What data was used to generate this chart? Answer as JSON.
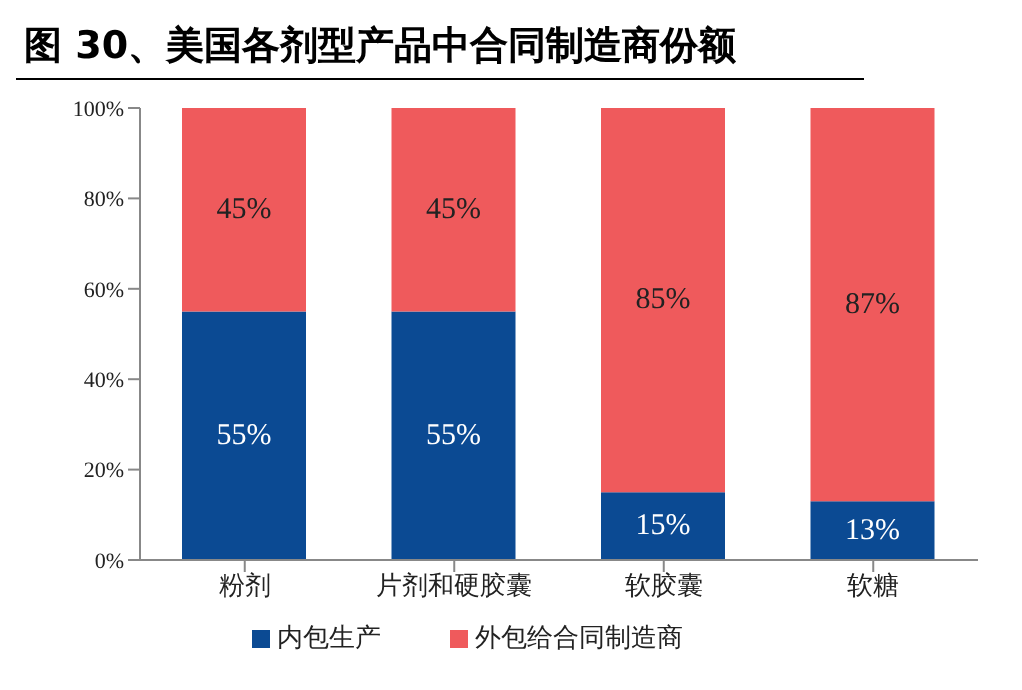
{
  "chart_data": {
    "type": "bar",
    "title": "图 30、美国各剂型产品中合同制造商份额",
    "stacked": true,
    "categories": [
      "粉剂",
      "片剂和硬胶囊",
      "软胶囊",
      "软糖"
    ],
    "series": [
      {
        "name": "内包生产",
        "color": "#0b4a93",
        "values": [
          55,
          55,
          15,
          13
        ],
        "value_labels": [
          "55%",
          "55%",
          "15%",
          "13%"
        ]
      },
      {
        "name": "外包给合同制造商",
        "color": "#ef5a5c",
        "values": [
          45,
          45,
          85,
          87
        ],
        "value_labels": [
          "45%",
          "45%",
          "85%",
          "87%"
        ]
      }
    ],
    "ylim": [
      0,
      100
    ],
    "yticks": [
      {
        "value": 0,
        "label": "0%"
      },
      {
        "value": 20,
        "label": "20%"
      },
      {
        "value": 40,
        "label": "40%"
      },
      {
        "value": 60,
        "label": "60%"
      },
      {
        "value": 80,
        "label": "80%"
      },
      {
        "value": 100,
        "label": "100%"
      }
    ],
    "grid": false,
    "legend": "bottom"
  }
}
